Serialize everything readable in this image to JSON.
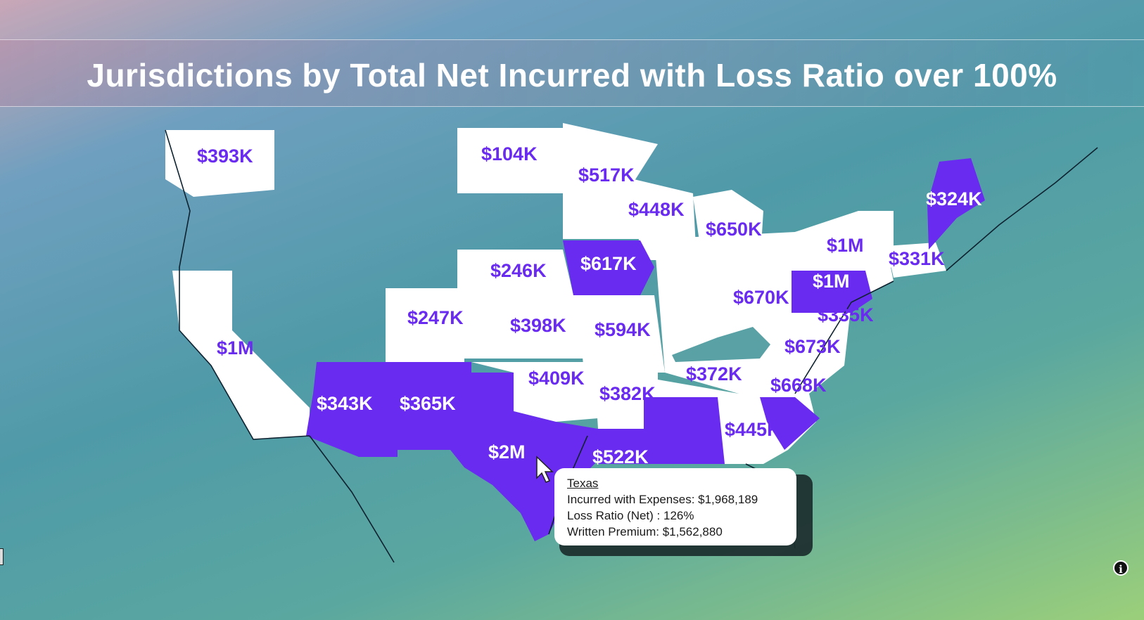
{
  "title": "Jurisdictions by Total Net Incurred with Loss Ratio over 100%",
  "colors": {
    "highlight": "#6a2bf0",
    "default_fill": "#ffffff",
    "label_on_white": "#6a2bf0",
    "label_on_purple": "#ffffff"
  },
  "labels": {
    "WA": "$393K",
    "ND": "$104K",
    "MN": "$517K",
    "WI": "$448K",
    "MI": "$650K",
    "ME": "$324K",
    "NY": "$1M",
    "MA": "$331K",
    "IA": "$617K",
    "NE": "$246K",
    "PA": "$1M",
    "OH": "$670K",
    "MD": "$335K",
    "CO": "$247K",
    "KS": "$398K",
    "MO": "$594K",
    "CA": "$1M",
    "VA": "$673K",
    "KY": "$372K",
    "OK": "$409K",
    "NC": "$668K",
    "AR": "$382K",
    "AZ": "$343K",
    "NM": "$365K",
    "GA": "$445K",
    "TX": "$2M",
    "LA": "$522K"
  },
  "tooltip": {
    "state": "Texas",
    "incurred": "Incurred with Expenses: $1,968,189",
    "loss_ratio": "Loss Ratio (Net) : 126%",
    "premium": "Written Premium: $1,562,880"
  },
  "info_icon": "info-icon"
}
